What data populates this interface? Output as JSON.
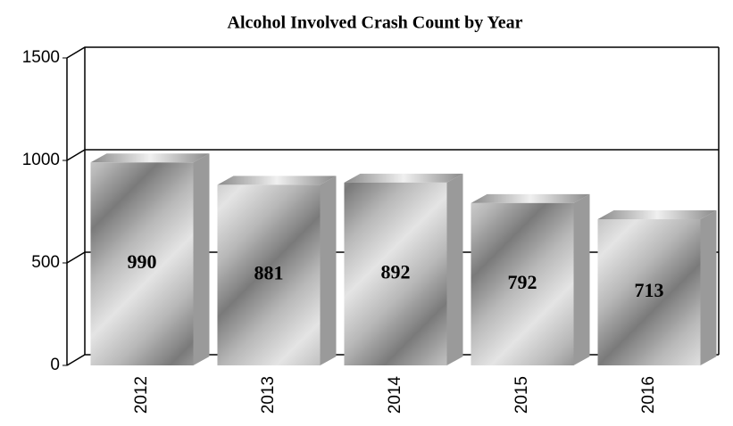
{
  "chart_data": {
    "type": "bar",
    "title": "Alcohol Involved Crash Count by Year",
    "categories": [
      "2012",
      "2013",
      "2014",
      "2015",
      "2016"
    ],
    "values": [
      990,
      881,
      892,
      792,
      713
    ],
    "color": "#9a9a9a",
    "ylim": [
      0,
      1500
    ],
    "yticks": [
      0,
      500,
      1000,
      1500
    ],
    "grid": true
  }
}
